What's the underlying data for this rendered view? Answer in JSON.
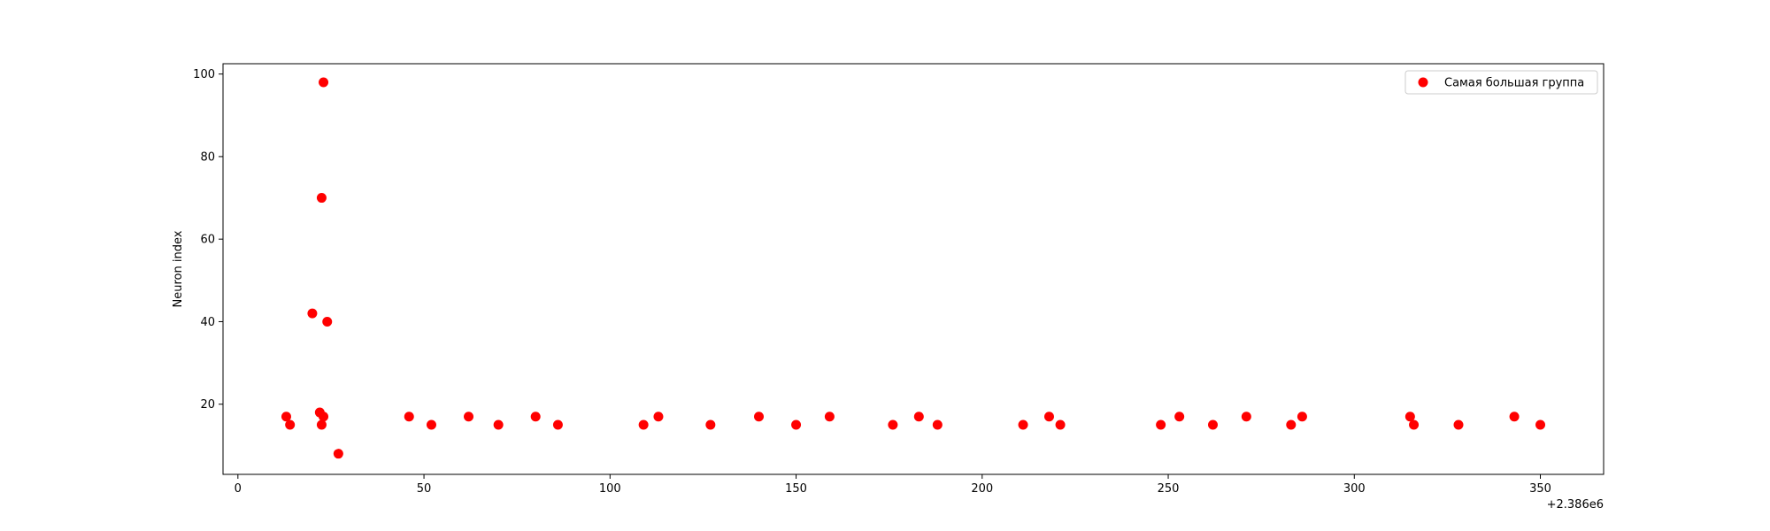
{
  "chart_data": {
    "type": "scatter",
    "title": "",
    "xlabel": "",
    "ylabel": "Neuron index",
    "x_offset_label": "+2.386e6",
    "xlim": [
      -4,
      367
    ],
    "ylim": [
      3,
      102.5
    ],
    "x_ticks": [
      0,
      50,
      100,
      150,
      200,
      250,
      300,
      350
    ],
    "y_ticks": [
      20,
      40,
      60,
      80,
      100
    ],
    "grid": false,
    "legend_position": "top-right",
    "series": [
      {
        "name": "Самая большая группа",
        "color": "#ff0000",
        "points": [
          {
            "x": 13,
            "y": 17
          },
          {
            "x": 14,
            "y": 15
          },
          {
            "x": 20,
            "y": 42
          },
          {
            "x": 22,
            "y": 18
          },
          {
            "x": 22.5,
            "y": 70
          },
          {
            "x": 22.5,
            "y": 15
          },
          {
            "x": 23,
            "y": 17
          },
          {
            "x": 23,
            "y": 98
          },
          {
            "x": 24,
            "y": 40
          },
          {
            "x": 27,
            "y": 8
          },
          {
            "x": 46,
            "y": 17
          },
          {
            "x": 52,
            "y": 15
          },
          {
            "x": 62,
            "y": 17
          },
          {
            "x": 70,
            "y": 15
          },
          {
            "x": 80,
            "y": 17
          },
          {
            "x": 86,
            "y": 15
          },
          {
            "x": 109,
            "y": 15
          },
          {
            "x": 113,
            "y": 17
          },
          {
            "x": 127,
            "y": 15
          },
          {
            "x": 140,
            "y": 17
          },
          {
            "x": 150,
            "y": 15
          },
          {
            "x": 159,
            "y": 17
          },
          {
            "x": 176,
            "y": 15
          },
          {
            "x": 183,
            "y": 17
          },
          {
            "x": 188,
            "y": 15
          },
          {
            "x": 211,
            "y": 15
          },
          {
            "x": 218,
            "y": 17
          },
          {
            "x": 221,
            "y": 15
          },
          {
            "x": 248,
            "y": 15
          },
          {
            "x": 253,
            "y": 17
          },
          {
            "x": 262,
            "y": 15
          },
          {
            "x": 271,
            "y": 17
          },
          {
            "x": 283,
            "y": 15
          },
          {
            "x": 286,
            "y": 17
          },
          {
            "x": 315,
            "y": 17
          },
          {
            "x": 316,
            "y": 15
          },
          {
            "x": 328,
            "y": 15
          },
          {
            "x": 343,
            "y": 17
          },
          {
            "x": 350,
            "y": 15
          }
        ]
      }
    ]
  }
}
